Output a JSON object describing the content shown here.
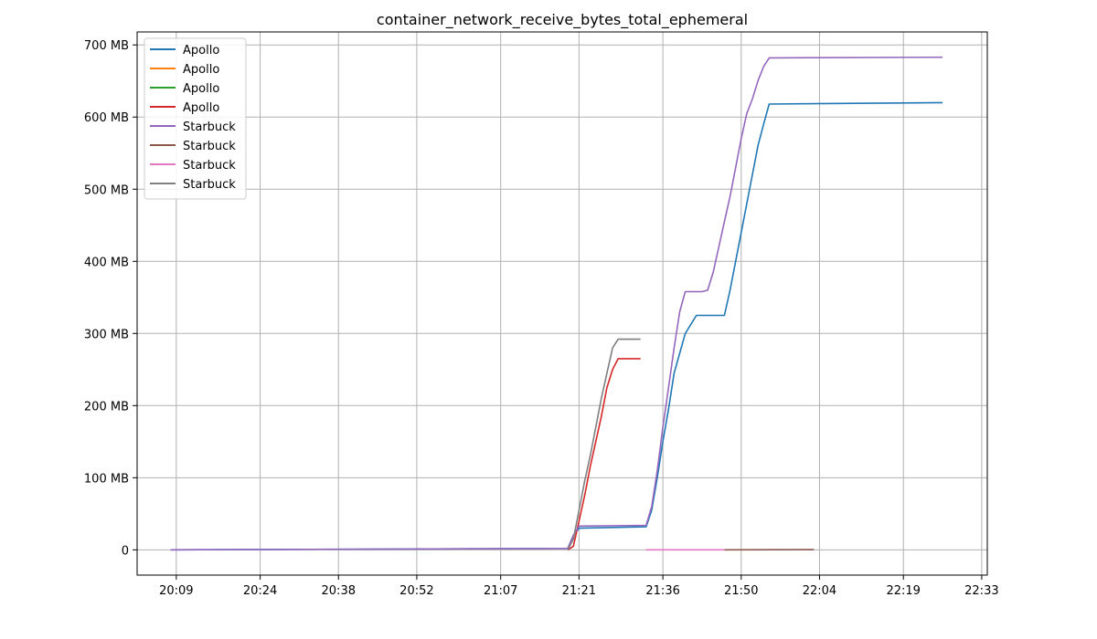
{
  "chart_data": {
    "type": "line",
    "title": "container_network_receive_bytes_total_ephemeral",
    "xlabel": "",
    "ylabel": "",
    "x_unit": "time",
    "xlim": [
      "20:02",
      "22:34"
    ],
    "ylim": [
      -35,
      718
    ],
    "x_ticks": [
      "20:09",
      "20:24",
      "20:38",
      "20:52",
      "21:07",
      "21:21",
      "21:36",
      "21:50",
      "22:04",
      "22:19",
      "22:33"
    ],
    "y_ticks": [
      {
        "value": 0,
        "label": "0"
      },
      {
        "value": 100,
        "label": "100 MB"
      },
      {
        "value": 200,
        "label": "200 MB"
      },
      {
        "value": 300,
        "label": "300 MB"
      },
      {
        "value": 400,
        "label": "400 MB"
      },
      {
        "value": 500,
        "label": "500 MB"
      },
      {
        "value": 600,
        "label": "600 MB"
      },
      {
        "value": 700,
        "label": "700 MB"
      }
    ],
    "grid": true,
    "legend_position": "top-left",
    "series": [
      {
        "name": "Apollo",
        "color": "#1f77b4",
        "x": [
          "20:08",
          "21:19",
          "21:20",
          "21:21",
          "21:33",
          "21:34",
          "21:35",
          "21:36",
          "21:37",
          "21:38",
          "21:40",
          "21:42",
          "21:43",
          "21:47",
          "21:48",
          "21:49",
          "21:50",
          "21:51",
          "21:52",
          "21:53",
          "21:54",
          "21:55",
          "22:26"
        ],
        "values": [
          0,
          2,
          20,
          30,
          32,
          55,
          100,
          150,
          195,
          245,
          300,
          325,
          325,
          325,
          360,
          400,
          440,
          480,
          520,
          560,
          590,
          618,
          620
        ]
      },
      {
        "name": "Apollo",
        "color": "#ff7f0e",
        "x": [],
        "values": []
      },
      {
        "name": "Apollo",
        "color": "#2ca02c",
        "x": [],
        "values": []
      },
      {
        "name": "Apollo",
        "color": "#d62728",
        "x": [
          "21:19",
          "21:20",
          "21:21",
          "21:22",
          "21:23",
          "21:24",
          "21:25",
          "21:26",
          "21:27",
          "21:28",
          "21:32"
        ],
        "values": [
          0,
          5,
          40,
          75,
          115,
          150,
          185,
          225,
          250,
          265,
          265
        ]
      },
      {
        "name": "Starbuck",
        "color": "#9467bd",
        "x": [
          "20:08",
          "21:19",
          "21:20",
          "21:21",
          "21:33",
          "21:34",
          "21:35",
          "21:36",
          "21:37",
          "21:38",
          "21:39",
          "21:40",
          "21:43",
          "21:44",
          "21:45",
          "21:46",
          "21:47",
          "21:48",
          "21:49",
          "21:50",
          "21:51",
          "21:52",
          "21:53",
          "21:54",
          "21:55",
          "22:26"
        ],
        "values": [
          0,
          2,
          20,
          33,
          34,
          60,
          110,
          170,
          225,
          280,
          330,
          358,
          358,
          360,
          385,
          420,
          455,
          490,
          530,
          570,
          605,
          625,
          650,
          670,
          682,
          683
        ]
      },
      {
        "name": "Starbuck",
        "color": "#8c564b",
        "x": [
          "21:47",
          "22:03"
        ],
        "values": [
          0,
          0.3
        ]
      },
      {
        "name": "Starbuck",
        "color": "#e377c2",
        "x": [
          "21:33",
          "21:47"
        ],
        "values": [
          0,
          0
        ]
      },
      {
        "name": "Starbuck",
        "color": "#7f7f7f",
        "x": [
          "21:19",
          "21:20",
          "21:21",
          "21:22",
          "21:23",
          "21:24",
          "21:25",
          "21:26",
          "21:27",
          "21:28",
          "21:32"
        ],
        "values": [
          0,
          15,
          55,
          95,
          130,
          170,
          210,
          245,
          280,
          292,
          292
        ]
      }
    ]
  }
}
